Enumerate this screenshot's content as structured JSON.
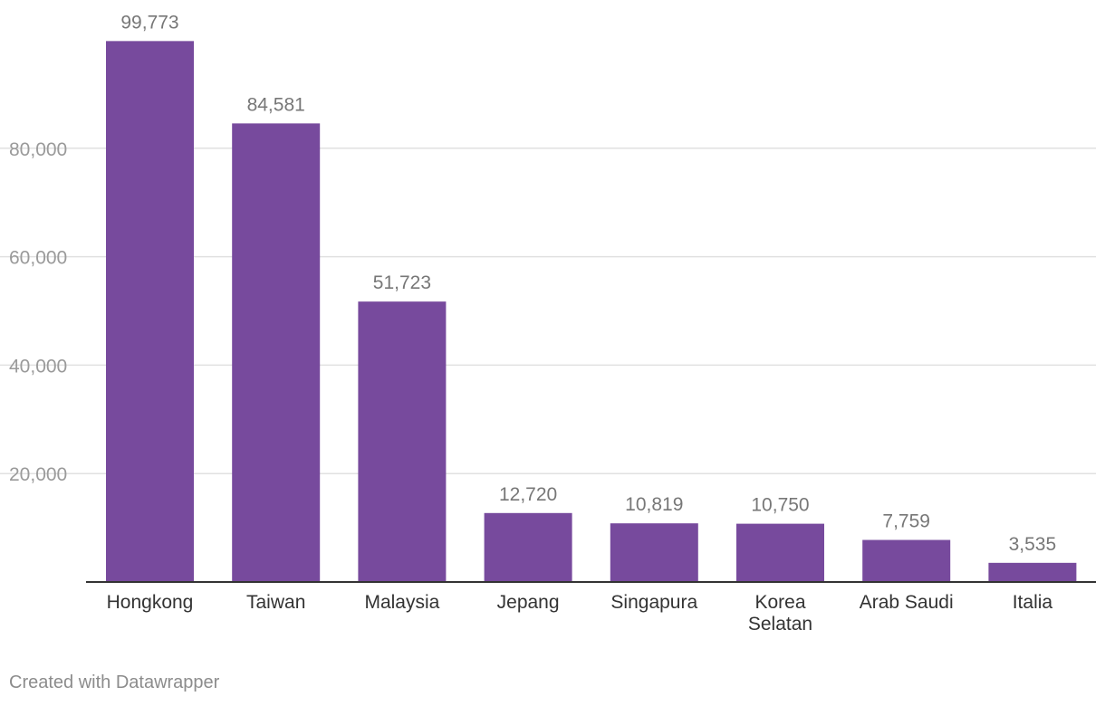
{
  "chart_data": {
    "type": "bar",
    "title": "",
    "xlabel": "",
    "ylabel": "",
    "categories": [
      "Hongkong",
      "Taiwan",
      "Malaysia",
      "Jepang",
      "Singapura",
      "Korea Selatan",
      "Arab Saudi",
      "Italia"
    ],
    "category_lines": [
      [
        "Hongkong"
      ],
      [
        "Taiwan"
      ],
      [
        "Malaysia"
      ],
      [
        "Jepang"
      ],
      [
        "Singapura"
      ],
      [
        "Korea",
        "Selatan"
      ],
      [
        "Arab Saudi"
      ],
      [
        "Italia"
      ]
    ],
    "values": [
      99773,
      84581,
      51723,
      12720,
      10819,
      10750,
      7759,
      3535
    ],
    "value_labels": [
      "99,773",
      "84,581",
      "51,723",
      "12,720",
      "10,819",
      "10,750",
      "7,759",
      "3,535"
    ],
    "ylim": [
      0,
      100000
    ],
    "yticks": [
      20000,
      40000,
      60000,
      80000
    ],
    "ytick_labels": [
      "20,000",
      "40,000",
      "60,000",
      "80,000"
    ],
    "grid": true,
    "bar_color": "#774a9d",
    "grid_color": "#e0e0e0",
    "axis_color": "#333333"
  },
  "footer": {
    "credit": "Created with Datawrapper"
  }
}
